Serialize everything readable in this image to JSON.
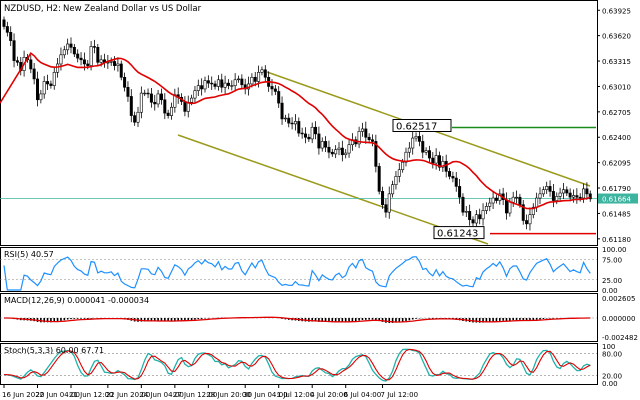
{
  "header": {
    "symbol": "NZDUSD, H2:",
    "description": "New Zealand Dollar vs US Dollar"
  },
  "colors": {
    "bull": "#ffffff",
    "bear": "#000000",
    "candle_outline": "#000000",
    "ma": "#e00000",
    "channel": "#9a9a1c",
    "resistance": "#1a8a1a",
    "support": "#e00000",
    "current_price": "#3cb4a0",
    "rsi": "#1e90ff",
    "macd_signal": "#e00000",
    "stoch_main": "#20b2aa",
    "stoch_signal": "#e00000"
  },
  "chart_data": [
    {
      "type": "candlestick",
      "title": "NZDUSD, H2: New Zealand Dollar vs US Dollar",
      "ylim": [
        0.6119,
        0.6388
      ],
      "y_ticks": [
        "0.63925",
        "0.63620",
        "0.63315",
        "0.63010",
        "0.62705",
        "0.62400",
        "0.62095",
        "0.61790",
        "0.61485",
        "0.61180"
      ],
      "current_price": "0.61664",
      "close": [
        0.6373,
        0.6366,
        0.6356,
        0.6332,
        0.633,
        0.632,
        0.6336,
        0.6333,
        0.6322,
        0.631,
        0.6285,
        0.6292,
        0.6307,
        0.6304,
        0.6302,
        0.6318,
        0.6328,
        0.6339,
        0.6345,
        0.6352,
        0.6348,
        0.634,
        0.6335,
        0.6333,
        0.6328,
        0.6326,
        0.6349,
        0.6348,
        0.633,
        0.6333,
        0.633,
        0.633,
        0.6331,
        0.6326,
        0.6328,
        0.6312,
        0.63,
        0.6289,
        0.6266,
        0.6258,
        0.627,
        0.6293,
        0.6293,
        0.6292,
        0.6282,
        0.628,
        0.6292,
        0.6285,
        0.6269,
        0.6266,
        0.6276,
        0.6291,
        0.6288,
        0.6283,
        0.6271,
        0.6282,
        0.6287,
        0.6296,
        0.6302,
        0.6298,
        0.6308,
        0.6305,
        0.6304,
        0.6301,
        0.6309,
        0.63,
        0.6305,
        0.6302,
        0.6302,
        0.6309,
        0.631,
        0.6303,
        0.6298,
        0.6304,
        0.6312,
        0.6307,
        0.6318,
        0.6321,
        0.6312,
        0.6301,
        0.6298,
        0.6295,
        0.6281,
        0.6262,
        0.6263,
        0.6257,
        0.6256,
        0.6259,
        0.6245,
        0.6244,
        0.624,
        0.6238,
        0.6252,
        0.6244,
        0.6227,
        0.6235,
        0.6228,
        0.6222,
        0.622,
        0.6225,
        0.6227,
        0.6219,
        0.6221,
        0.6231,
        0.6237,
        0.6232,
        0.6247,
        0.625,
        0.624,
        0.6237,
        0.6235,
        0.6205,
        0.6175,
        0.6159,
        0.615,
        0.6172,
        0.6183,
        0.6193,
        0.6201,
        0.621,
        0.6222,
        0.6227,
        0.6239,
        0.6241,
        0.6235,
        0.6222,
        0.6224,
        0.6215,
        0.6209,
        0.6218,
        0.6204,
        0.6211,
        0.6199,
        0.6193,
        0.6191,
        0.6181,
        0.6168,
        0.615,
        0.6151,
        0.6141,
        0.6137,
        0.6147,
        0.6142,
        0.6152,
        0.6157,
        0.6161,
        0.6167,
        0.6164,
        0.6172,
        0.6165,
        0.6149,
        0.6162,
        0.6168,
        0.6168,
        0.6159,
        0.614,
        0.6136,
        0.6147,
        0.6156,
        0.6167,
        0.6172,
        0.6177,
        0.6181,
        0.6175,
        0.6164,
        0.6169,
        0.6173,
        0.6177,
        0.6173,
        0.6168,
        0.617,
        0.6168,
        0.6167,
        0.6178,
        0.6172,
        0.6166
      ],
      "levels": [
        {
          "label": "0.62517",
          "value": 0.62517
        },
        {
          "label": "0.61243",
          "value": 0.61243
        }
      ]
    },
    {
      "type": "line",
      "title": "RSI(5) 40.57",
      "ylim": [
        0,
        100
      ],
      "y_ticks": [
        "100.00",
        "75.00",
        "25.00",
        "0.00"
      ]
    },
    {
      "type": "histogram",
      "title": "MACD(12,26,9) 0.000041 -0.000034",
      "y_ticks": [
        "0.002605",
        "0.000000",
        "-0.002482"
      ]
    },
    {
      "type": "line",
      "title": "Stoch(5,3,3) 60.00 67.71",
      "ylim": [
        0,
        100
      ],
      "y_ticks": [
        "100",
        "80.00",
        "20.00",
        "0.00"
      ]
    }
  ],
  "x_axis": {
    "labels": [
      "16 Jun 2022",
      "20 Jun 04:00",
      "21 Jun 12:00",
      "22 Jun 20:00",
      "24 Jun 04:00",
      "27 Jun 12:00",
      "28 Jun 20:00",
      "30 Jun 04:00",
      "1 Jul 12:00",
      "4 Jul 20:00",
      "6 Jul 04:00",
      "7 Jul 12:00"
    ],
    "positions": [
      0,
      10,
      20,
      31,
      41,
      51,
      61,
      72,
      82,
      92,
      102,
      113
    ]
  }
}
